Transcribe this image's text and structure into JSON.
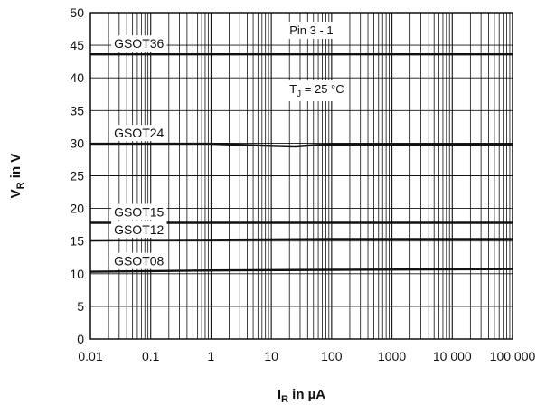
{
  "chart_data": {
    "type": "line",
    "title": "",
    "xlabel": {
      "main": "I",
      "sub": "R",
      "rest": " in µA"
    },
    "ylabel": {
      "main": "V",
      "sub": "R",
      "rest": " in V"
    },
    "x_scale": "log",
    "xlim": [
      0.01,
      100000
    ],
    "ylim": [
      0,
      50
    ],
    "grid": true,
    "x_tick_values": [
      0.01,
      0.1,
      1,
      10,
      100,
      1000,
      10000,
      100000
    ],
    "x_tick_labels": [
      "0.01",
      "0.1",
      "1",
      "10",
      "100",
      "1000",
      "10 000",
      "100 000"
    ],
    "y_tick_values": [
      0,
      5,
      10,
      15,
      20,
      25,
      30,
      35,
      40,
      45,
      50
    ],
    "y_tick_labels": [
      "0",
      "5",
      "10",
      "15",
      "20",
      "25",
      "30",
      "35",
      "40",
      "45",
      "50"
    ],
    "annotations": {
      "pin": "Pin 3 - 1",
      "temp": {
        "main": "T",
        "sub": "J",
        "rest": " = 25 °C"
      }
    },
    "series": [
      {
        "name": "GSOT36",
        "x": [
          0.01,
          100000
        ],
        "y": [
          43.6,
          43.6
        ]
      },
      {
        "name": "GSOT24",
        "x": [
          0.01,
          1,
          10,
          25,
          50,
          100,
          100000
        ],
        "y": [
          29.9,
          29.9,
          29.6,
          29.5,
          29.7,
          29.8,
          29.8
        ]
      },
      {
        "name": "GSOT15",
        "x": [
          0.01,
          100000
        ],
        "y": [
          17.8,
          17.8
        ]
      },
      {
        "name": "GSOT12",
        "x": [
          0.01,
          1,
          100,
          100000
        ],
        "y": [
          15.1,
          15.2,
          15.3,
          15.3
        ]
      },
      {
        "name": "GSOT08",
        "x": [
          0.01,
          0.1,
          1,
          100,
          100000
        ],
        "y": [
          10.3,
          10.4,
          10.5,
          10.6,
          10.7
        ]
      }
    ]
  }
}
